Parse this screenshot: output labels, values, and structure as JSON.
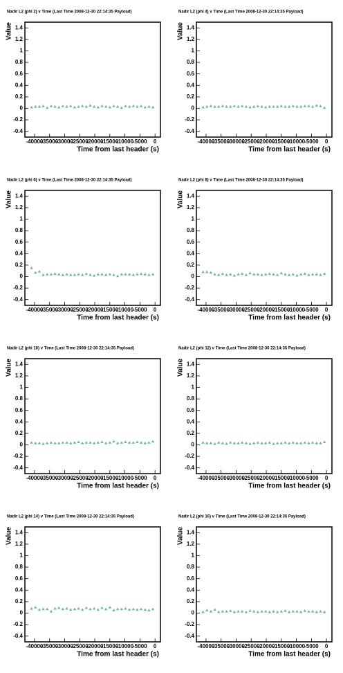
{
  "chart_data": [
    {
      "type": "scatter",
      "title": "Nadir L2 (phi 2) v Time (Last Time 2008-12-30 22:14:35 Payload)",
      "xlabel": "Time from last header (s)",
      "ylabel": "Value",
      "color": "#6fb5a3",
      "xlim": [
        -43200,
        1800
      ],
      "ylim": [
        -0.5,
        1.5
      ],
      "xticks": [
        -40000,
        -35000,
        -30000,
        -25000,
        -20000,
        -15000,
        -10000,
        -5000,
        0
      ],
      "yticks": [
        -0.4,
        -0.2,
        0,
        0.2,
        0.4,
        0.6,
        0.8,
        1,
        1.2,
        1.4
      ],
      "x": [
        -41000,
        -39700,
        -38400,
        -37100,
        -35800,
        -34500,
        -33200,
        -31900,
        -30600,
        -29300,
        -28000,
        -26700,
        -25400,
        -24100,
        -22800,
        -21500,
        -20200,
        -18900,
        -17600,
        -16300,
        -15000,
        -13700,
        -12400,
        -11100,
        -9800,
        -8500,
        -7200,
        -5900,
        -4600,
        -3300,
        -2000,
        -700
      ],
      "values": [
        0.02,
        0.03,
        0.03,
        0.04,
        0.01,
        0.04,
        0.03,
        0.02,
        0.04,
        0.03,
        0.04,
        0.02,
        0.03,
        0.04,
        0.03,
        0.05,
        0.03,
        0.02,
        0.04,
        0.03,
        0.02,
        0.04,
        0.03,
        0.01,
        0.04,
        0.03,
        0.04,
        0.03,
        0.04,
        0.02,
        0.03,
        0.02
      ]
    },
    {
      "type": "scatter",
      "title": "Nadir L2 (phi 4) v Time (Last Time 2008-12-30 22:14:35 Payload)",
      "xlabel": "Time from last header (s)",
      "ylabel": "Value",
      "color": "#6fb5a3",
      "xlim": [
        -43200,
        1800
      ],
      "ylim": [
        -0.5,
        1.5
      ],
      "xticks": [
        -40000,
        -35000,
        -30000,
        -25000,
        -20000,
        -15000,
        -10000,
        -5000,
        0
      ],
      "yticks": [
        -0.4,
        -0.2,
        0,
        0.2,
        0.4,
        0.6,
        0.8,
        1,
        1.2,
        1.4
      ],
      "x": [
        -41000,
        -39700,
        -38400,
        -37100,
        -35800,
        -34500,
        -33200,
        -31900,
        -30600,
        -29300,
        -28000,
        -26700,
        -25400,
        -24100,
        -22800,
        -21500,
        -20200,
        -18900,
        -17600,
        -16300,
        -15000,
        -13700,
        -12400,
        -11100,
        -9800,
        -8500,
        -7200,
        -5900,
        -4600,
        -3300,
        -2000,
        -700
      ],
      "values": [
        0.02,
        0.03,
        0.04,
        0.03,
        0.03,
        0.04,
        0.03,
        0.03,
        0.04,
        0.03,
        0.04,
        0.03,
        0.02,
        0.03,
        0.04,
        0.03,
        0.02,
        0.03,
        0.03,
        0.03,
        0.04,
        0.03,
        0.03,
        0.04,
        0.03,
        0.03,
        0.04,
        0.04,
        0.03,
        0.05,
        0.04,
        0.01
      ]
    },
    {
      "type": "scatter",
      "title": "Nadir L2 (phi 6) v Time (Last Time 2008-12-30 22:14:35 Payload)",
      "xlabel": "Time from last header (s)",
      "ylabel": "Value",
      "color": "#6fb5a3",
      "xlim": [
        -43200,
        1800
      ],
      "ylim": [
        -0.5,
        1.5
      ],
      "xticks": [
        -40000,
        -35000,
        -30000,
        -25000,
        -20000,
        -15000,
        -10000,
        -5000,
        0
      ],
      "yticks": [
        -0.4,
        -0.2,
        0,
        0.2,
        0.4,
        0.6,
        0.8,
        1,
        1.2,
        1.4
      ],
      "x": [
        -41000,
        -39700,
        -38400,
        -37100,
        -35800,
        -34500,
        -33200,
        -31900,
        -30600,
        -29300,
        -28000,
        -26700,
        -25400,
        -24100,
        -22800,
        -21500,
        -20200,
        -18900,
        -17600,
        -16300,
        -15000,
        -13700,
        -12400,
        -11100,
        -9800,
        -8500,
        -7200,
        -5900,
        -4600,
        -3300,
        -2000,
        -700
      ],
      "values": [
        0.15,
        0.07,
        0.09,
        0.03,
        0.04,
        0.04,
        0.05,
        0.04,
        0.03,
        0.04,
        0.03,
        0.03,
        0.04,
        0.03,
        0.05,
        0.03,
        0.02,
        0.04,
        0.04,
        0.03,
        0.04,
        0.03,
        0.01,
        0.04,
        0.04,
        0.04,
        0.03,
        0.04,
        0.05,
        0.04,
        0.03,
        0.04
      ]
    },
    {
      "type": "scatter",
      "title": "Nadir L2 (phi 8) v Time (Last Time 2008-12-30 22:14:35 Payload)",
      "xlabel": "Time from last header (s)",
      "ylabel": "Value",
      "color": "#6fb5a3",
      "xlim": [
        -43200,
        1800
      ],
      "ylim": [
        -0.5,
        1.5
      ],
      "xticks": [
        -40000,
        -35000,
        -30000,
        -25000,
        -20000,
        -15000,
        -10000,
        -5000,
        0
      ],
      "yticks": [
        -0.4,
        -0.2,
        0,
        0.2,
        0.4,
        0.6,
        0.8,
        1,
        1.2,
        1.4
      ],
      "x": [
        -41000,
        -39700,
        -38400,
        -37100,
        -35800,
        -34500,
        -33200,
        -31900,
        -30600,
        -29300,
        -28000,
        -26700,
        -25400,
        -24100,
        -22800,
        -21500,
        -20200,
        -18900,
        -17600,
        -16300,
        -15000,
        -13700,
        -12400,
        -11100,
        -9800,
        -8500,
        -7200,
        -5900,
        -4600,
        -3300,
        -2000,
        -700
      ],
      "values": [
        0.08,
        0.08,
        0.07,
        0.04,
        0.03,
        0.05,
        0.03,
        0.04,
        0.02,
        0.04,
        0.05,
        0.03,
        0.06,
        0.04,
        0.04,
        0.03,
        0.04,
        0.05,
        0.04,
        0.03,
        0.06,
        0.04,
        0.03,
        0.04,
        0.02,
        0.04,
        0.05,
        0.03,
        0.04,
        0.04,
        0.03,
        0.05
      ]
    },
    {
      "type": "scatter",
      "title": "Nadir L2 (phi 10) v Time (Last Time 2008-12-30 22:14:35 Payload)",
      "xlabel": "Time from last header (s)",
      "ylabel": "Value",
      "color": "#6fb5a3",
      "xlim": [
        -43200,
        1800
      ],
      "ylim": [
        -0.5,
        1.5
      ],
      "xticks": [
        -40000,
        -35000,
        -30000,
        -25000,
        -20000,
        -15000,
        -10000,
        -5000,
        0
      ],
      "yticks": [
        -0.4,
        -0.2,
        0,
        0.2,
        0.4,
        0.6,
        0.8,
        1,
        1.2,
        1.4
      ],
      "x": [
        -41000,
        -39700,
        -38400,
        -37100,
        -35800,
        -34500,
        -33200,
        -31900,
        -30600,
        -29300,
        -28000,
        -26700,
        -25400,
        -24100,
        -22800,
        -21500,
        -20200,
        -18900,
        -17600,
        -16300,
        -15000,
        -13700,
        -12400,
        -11100,
        -9800,
        -8500,
        -7200,
        -5900,
        -4600,
        -3300,
        -2000,
        -700
      ],
      "values": [
        0.04,
        0.03,
        0.03,
        0.02,
        0.03,
        0.04,
        0.03,
        0.03,
        0.04,
        0.04,
        0.03,
        0.04,
        0.05,
        0.03,
        0.04,
        0.04,
        0.03,
        0.04,
        0.05,
        0.03,
        0.04,
        0.06,
        0.03,
        0.04,
        0.05,
        0.04,
        0.04,
        0.05,
        0.04,
        0.03,
        0.04,
        0.06
      ]
    },
    {
      "type": "scatter",
      "title": "Nadir L2 (phi 12) v Time (Last Time 2008-12-30 22:14:35 Payload)",
      "xlabel": "Time from last header (s)",
      "ylabel": "Value",
      "color": "#6fb5a3",
      "xlim": [
        -43200,
        1800
      ],
      "ylim": [
        -0.5,
        1.5
      ],
      "xticks": [
        -40000,
        -35000,
        -30000,
        -25000,
        -20000,
        -15000,
        -10000,
        -5000,
        0
      ],
      "yticks": [
        -0.4,
        -0.2,
        0,
        0.2,
        0.4,
        0.6,
        0.8,
        1,
        1.2,
        1.4
      ],
      "x": [
        -41000,
        -39700,
        -38400,
        -37100,
        -35800,
        -34500,
        -33200,
        -31900,
        -30600,
        -29300,
        -28000,
        -26700,
        -25400,
        -24100,
        -22800,
        -21500,
        -20200,
        -18900,
        -17600,
        -16300,
        -15000,
        -13700,
        -12400,
        -11100,
        -9800,
        -8500,
        -7200,
        -5900,
        -4600,
        -3300,
        -2000,
        -700
      ],
      "values": [
        0.04,
        0.03,
        0.03,
        0.02,
        0.04,
        0.03,
        0.02,
        0.04,
        0.03,
        0.03,
        0.04,
        0.03,
        0.02,
        0.03,
        0.04,
        0.03,
        0.03,
        0.04,
        0.02,
        0.03,
        0.03,
        0.04,
        0.03,
        0.04,
        0.03,
        0.03,
        0.04,
        0.03,
        0.04,
        0.03,
        0.03,
        0.05
      ]
    },
    {
      "type": "scatter",
      "title": "Nadir L2 (phi 14) v Time (Last Time 2008-12-30 22:14:35 Payload)",
      "xlabel": "Time from last header (s)",
      "ylabel": "Value",
      "color": "#6fb5a3",
      "xlim": [
        -43200,
        1800
      ],
      "ylim": [
        -0.5,
        1.5
      ],
      "xticks": [
        -40000,
        -35000,
        -30000,
        -25000,
        -20000,
        -15000,
        -10000,
        -5000,
        0
      ],
      "yticks": [
        -0.4,
        -0.2,
        0,
        0.2,
        0.4,
        0.6,
        0.8,
        1,
        1.2,
        1.4
      ],
      "x": [
        -41000,
        -39700,
        -38400,
        -37100,
        -35800,
        -34500,
        -33200,
        -31900,
        -30600,
        -29300,
        -28000,
        -26700,
        -25400,
        -24100,
        -22800,
        -21500,
        -20200,
        -18900,
        -17600,
        -16300,
        -15000,
        -13700,
        -12400,
        -11100,
        -9800,
        -8500,
        -7200,
        -5900,
        -4600,
        -3300,
        -2000,
        -700
      ],
      "values": [
        0.08,
        0.1,
        0.06,
        0.07,
        0.07,
        0.03,
        0.08,
        0.09,
        0.07,
        0.08,
        0.06,
        0.07,
        0.08,
        0.06,
        0.09,
        0.07,
        0.08,
        0.06,
        0.09,
        0.07,
        0.1,
        0.05,
        0.07,
        0.07,
        0.08,
        0.06,
        0.07,
        0.06,
        0.07,
        0.06,
        0.05,
        0.07
      ]
    },
    {
      "type": "scatter",
      "title": "Nadir L2 (phi 16) v Time (Last Time 2008-12-30 22:14:35 Payload)",
      "xlabel": "Time from last header (s)",
      "ylabel": "Value",
      "color": "#6fb5a3",
      "xlim": [
        -43200,
        1800
      ],
      "ylim": [
        -0.5,
        1.5
      ],
      "xticks": [
        -40000,
        -35000,
        -30000,
        -25000,
        -20000,
        -15000,
        -10000,
        -5000,
        0
      ],
      "yticks": [
        -0.4,
        -0.2,
        0,
        0.2,
        0.4,
        0.6,
        0.8,
        1,
        1.2,
        1.4
      ],
      "x": [
        -41000,
        -39700,
        -38400,
        -37100,
        -35800,
        -34500,
        -33200,
        -31900,
        -30600,
        -29300,
        -28000,
        -26700,
        -25400,
        -24100,
        -22800,
        -21500,
        -20200,
        -18900,
        -17600,
        -16300,
        -15000,
        -13700,
        -12400,
        -11100,
        -9800,
        -8500,
        -7200,
        -5900,
        -4600,
        -3300,
        -2000,
        -700
      ],
      "values": [
        0.02,
        0.05,
        0.03,
        0.06,
        0.02,
        0.03,
        0.03,
        0.04,
        0.02,
        0.03,
        0.03,
        0.02,
        0.04,
        0.03,
        0.02,
        0.03,
        0.03,
        0.02,
        0.03,
        0.02,
        0.03,
        0.04,
        0.02,
        0.03,
        0.03,
        0.02,
        0.04,
        0.03,
        0.03,
        0.02,
        0.03,
        0.02
      ]
    }
  ]
}
